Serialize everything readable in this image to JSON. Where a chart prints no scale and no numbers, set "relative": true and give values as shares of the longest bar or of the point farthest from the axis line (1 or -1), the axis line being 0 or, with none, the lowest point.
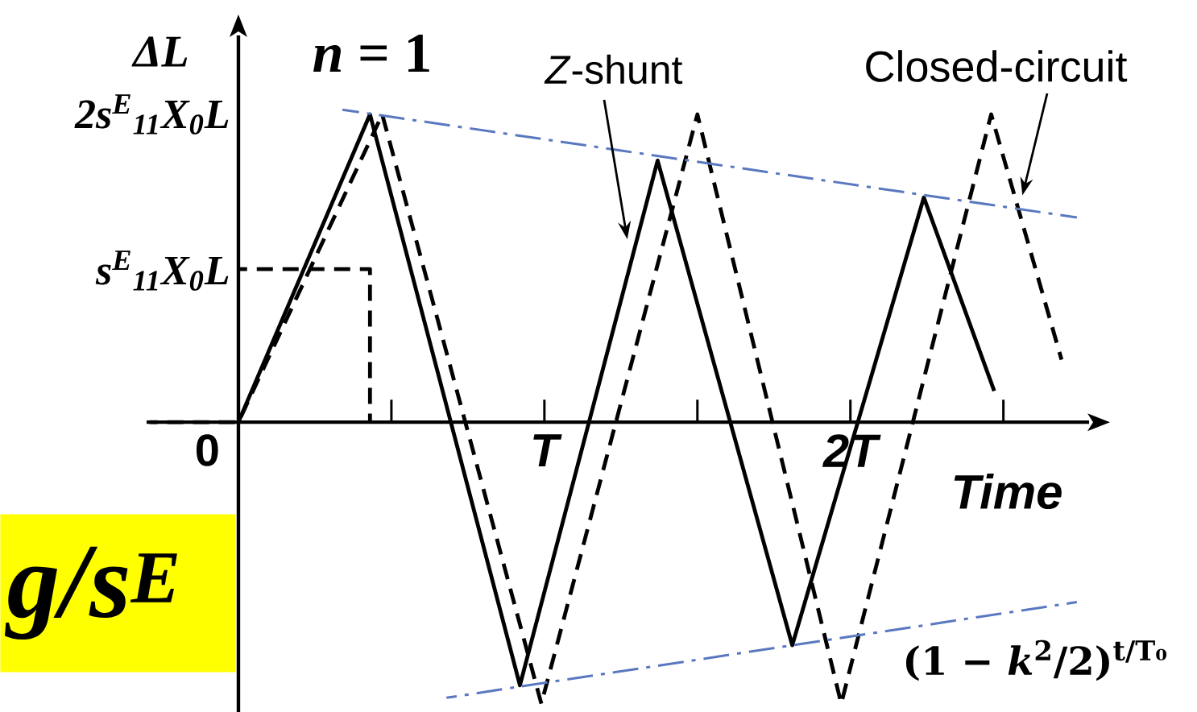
{
  "chart_data": {
    "type": "line",
    "relative": true,
    "title": "*n* = 1",
    "xlabel": "Time",
    "ylabel": "ΔL",
    "xlim": [
      -0.3,
      2.78
    ],
    "xticks": [
      0,
      {
        "value": 0.5,
        "label": null
      },
      {
        "value": 1,
        "label": "T"
      },
      {
        "value": 1.5,
        "label": null
      },
      {
        "value": 2,
        "label": "2T"
      },
      {
        "value": 2.5,
        "label": null
      }
    ],
    "series": [
      {
        "name": "*Z*-shunt",
        "color": "#000000",
        "line_style": "solid",
        "x": [
          0,
          0.43,
          0.92,
          1.37,
          1.81,
          2.24,
          2.47
        ],
        "values": [
          0,
          0.985,
          -0.842,
          0.837,
          -0.714,
          0.719,
          0.1
        ]
      },
      {
        "name": "Closed-circuit",
        "color": "#000000",
        "line_style": "dashed",
        "x": [
          -0.29,
          0,
          0.47,
          0.99,
          1.5,
          1.97,
          2.46,
          2.69
        ],
        "values": [
          0,
          0,
          0.985,
          -0.901,
          0.985,
          -0.901,
          0.985,
          0.2
        ]
      },
      {
        "color": "#000000",
        "line_style": "dashed",
        "x": [
          0,
          0.43,
          0.43
        ],
        "values": [
          0.49,
          0.49,
          0
        ]
      },
      {
        "color": "#5a78c0",
        "line_style": "dashdot",
        "x": [
          0.34,
          2.74
        ],
        "values": [
          1.0,
          0.655
        ]
      },
      {
        "name": "(1 − *k*$^{2}$/2)$^{t/T₀}$",
        "color": "#5a78c0",
        "line_style": "dashdot",
        "x": [
          0.68,
          2.74
        ],
        "values": [
          -0.882,
          -0.576
        ]
      }
    ],
    "annotations": [
      "s$^{E}$$_{11}$X$_{0}$L",
      "2s$^{E}$$_{11}$X$_{0}$L",
      "g/s$^{E}$"
    ]
  }
}
